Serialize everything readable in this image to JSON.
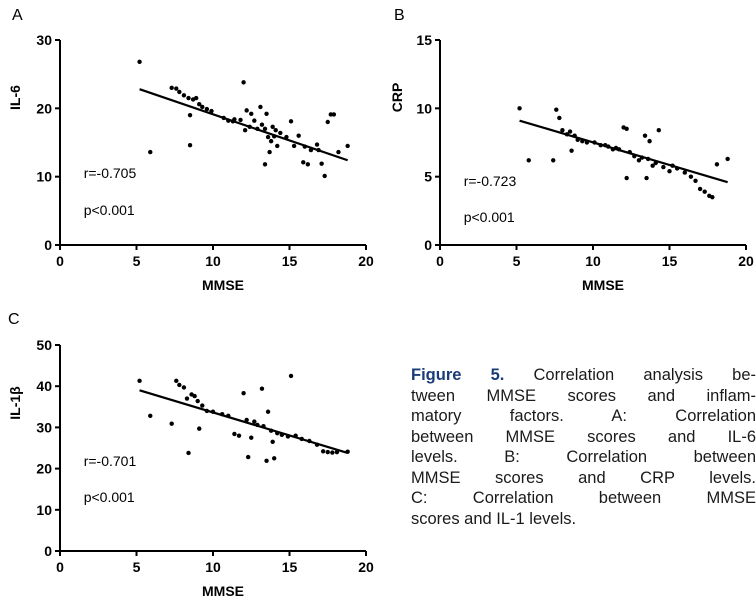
{
  "chart_data": [
    {
      "panel": "A",
      "type": "scatter",
      "xlabel": "MMSE",
      "ylabel": "IL-6",
      "xlim": [
        0,
        20
      ],
      "ylim": [
        0,
        30
      ],
      "xticks": [
        "0",
        "5",
        "10",
        "15",
        "20"
      ],
      "yticks": [
        "0",
        "10",
        "20",
        "30"
      ],
      "annotations": [
        "r=-0.705",
        "p<0.001"
      ],
      "fit_line": [
        [
          5.2,
          22.8
        ],
        [
          18.8,
          12.4
        ]
      ],
      "points": [
        [
          5.2,
          26.8
        ],
        [
          5.9,
          13.6
        ],
        [
          7.3,
          23.0
        ],
        [
          7.6,
          22.9
        ],
        [
          7.8,
          22.4
        ],
        [
          8.1,
          21.9
        ],
        [
          8.4,
          21.5
        ],
        [
          8.5,
          14.6
        ],
        [
          8.5,
          19.0
        ],
        [
          8.7,
          21.3
        ],
        [
          8.9,
          21.5
        ],
        [
          9.1,
          20.6
        ],
        [
          9.3,
          20.2
        ],
        [
          9.6,
          19.9
        ],
        [
          9.9,
          19.6
        ],
        [
          10.7,
          18.6
        ],
        [
          11.0,
          18.2
        ],
        [
          11.3,
          18.1
        ],
        [
          11.4,
          18.4
        ],
        [
          11.8,
          18.3
        ],
        [
          12.0,
          23.8
        ],
        [
          12.1,
          16.8
        ],
        [
          12.2,
          19.7
        ],
        [
          12.4,
          17.3
        ],
        [
          12.5,
          19.2
        ],
        [
          12.7,
          18.2
        ],
        [
          12.9,
          17.0
        ],
        [
          13.1,
          20.2
        ],
        [
          13.2,
          17.6
        ],
        [
          13.4,
          17.0
        ],
        [
          13.4,
          11.8
        ],
        [
          13.5,
          19.2
        ],
        [
          13.6,
          15.8
        ],
        [
          13.7,
          13.6
        ],
        [
          13.8,
          15.2
        ],
        [
          13.9,
          17.3
        ],
        [
          14.0,
          15.9
        ],
        [
          14.1,
          16.8
        ],
        [
          14.2,
          14.5
        ],
        [
          14.4,
          16.4
        ],
        [
          14.8,
          15.8
        ],
        [
          15.1,
          18.1
        ],
        [
          15.3,
          14.5
        ],
        [
          15.6,
          16.0
        ],
        [
          15.9,
          12.1
        ],
        [
          16.0,
          14.4
        ],
        [
          16.2,
          11.8
        ],
        [
          16.4,
          13.9
        ],
        [
          16.8,
          14.7
        ],
        [
          16.9,
          13.9
        ],
        [
          17.1,
          11.9
        ],
        [
          17.3,
          10.1
        ],
        [
          17.5,
          18.0
        ],
        [
          17.7,
          19.1
        ],
        [
          17.9,
          19.1
        ],
        [
          18.2,
          13.6
        ],
        [
          18.8,
          14.5
        ]
      ]
    },
    {
      "panel": "B",
      "type": "scatter",
      "xlabel": "MMSE",
      "ylabel": "CRP",
      "xlim": [
        0,
        20
      ],
      "ylim": [
        0,
        15
      ],
      "xticks": [
        "0",
        "5",
        "10",
        "15",
        "20"
      ],
      "yticks": [
        "0",
        "5",
        "10",
        "15"
      ],
      "annotations": [
        "r=-0.723",
        "p<0.001"
      ],
      "fit_line": [
        [
          5.2,
          9.1
        ],
        [
          18.8,
          4.6
        ]
      ],
      "points": [
        [
          5.2,
          10.0
        ],
        [
          5.8,
          6.2
        ],
        [
          7.4,
          6.2
        ],
        [
          7.6,
          9.9
        ],
        [
          7.8,
          9.3
        ],
        [
          8.0,
          8.4
        ],
        [
          8.3,
          8.1
        ],
        [
          8.5,
          8.3
        ],
        [
          8.6,
          6.9
        ],
        [
          8.8,
          8.0
        ],
        [
          9.0,
          7.7
        ],
        [
          9.3,
          7.6
        ],
        [
          9.6,
          7.5
        ],
        [
          10.1,
          7.5
        ],
        [
          10.5,
          7.3
        ],
        [
          10.8,
          7.3
        ],
        [
          11.0,
          7.2
        ],
        [
          11.3,
          7.0
        ],
        [
          11.5,
          7.1
        ],
        [
          11.7,
          7.0
        ],
        [
          12.0,
          8.6
        ],
        [
          12.2,
          8.5
        ],
        [
          12.2,
          4.9
        ],
        [
          12.4,
          6.8
        ],
        [
          12.7,
          6.5
        ],
        [
          13.0,
          6.2
        ],
        [
          13.2,
          6.4
        ],
        [
          13.4,
          8.0
        ],
        [
          13.5,
          4.9
        ],
        [
          13.6,
          6.3
        ],
        [
          13.7,
          7.6
        ],
        [
          13.9,
          5.8
        ],
        [
          14.1,
          6.0
        ],
        [
          14.3,
          8.4
        ],
        [
          14.6,
          5.7
        ],
        [
          15.0,
          5.4
        ],
        [
          15.2,
          5.8
        ],
        [
          15.5,
          5.6
        ],
        [
          16.0,
          5.3
        ],
        [
          16.4,
          5.0
        ],
        [
          16.7,
          4.7
        ],
        [
          17.0,
          4.1
        ],
        [
          17.3,
          3.9
        ],
        [
          17.6,
          3.6
        ],
        [
          17.8,
          3.5
        ],
        [
          18.1,
          5.9
        ],
        [
          18.8,
          6.3
        ]
      ]
    },
    {
      "panel": "C",
      "type": "scatter",
      "xlabel": "MMSE",
      "ylabel": "IL-1β",
      "xlim": [
        0,
        20
      ],
      "ylim": [
        0,
        50
      ],
      "xticks": [
        "0",
        "5",
        "10",
        "15",
        "20"
      ],
      "yticks": [
        "0",
        "10",
        "20",
        "30",
        "40",
        "50"
      ],
      "annotations": [
        "r=-0.701",
        "p<0.001"
      ],
      "fit_line": [
        [
          5.2,
          39.0
        ],
        [
          18.8,
          23.8
        ]
      ],
      "points": [
        [
          5.2,
          41.3
        ],
        [
          5.9,
          32.8
        ],
        [
          7.3,
          30.9
        ],
        [
          7.6,
          41.3
        ],
        [
          7.8,
          40.3
        ],
        [
          8.1,
          39.7
        ],
        [
          8.3,
          37.0
        ],
        [
          8.4,
          23.8
        ],
        [
          8.6,
          38.0
        ],
        [
          8.8,
          37.6
        ],
        [
          9.0,
          36.4
        ],
        [
          9.1,
          29.7
        ],
        [
          9.3,
          35.3
        ],
        [
          9.6,
          34.0
        ],
        [
          10.0,
          33.8
        ],
        [
          10.6,
          33.2
        ],
        [
          11.0,
          32.8
        ],
        [
          11.4,
          28.4
        ],
        [
          11.7,
          28.0
        ],
        [
          12.0,
          38.3
        ],
        [
          12.2,
          31.8
        ],
        [
          12.3,
          22.8
        ],
        [
          12.5,
          27.5
        ],
        [
          12.7,
          31.4
        ],
        [
          12.9,
          30.6
        ],
        [
          13.2,
          39.4
        ],
        [
          13.3,
          30.3
        ],
        [
          13.5,
          21.9
        ],
        [
          13.6,
          33.8
        ],
        [
          13.8,
          29.2
        ],
        [
          13.9,
          26.5
        ],
        [
          14.0,
          22.5
        ],
        [
          14.2,
          28.6
        ],
        [
          14.5,
          28.2
        ],
        [
          14.9,
          27.8
        ],
        [
          15.1,
          42.5
        ],
        [
          15.4,
          28.0
        ],
        [
          15.8,
          27.2
        ],
        [
          16.3,
          26.7
        ],
        [
          16.8,
          25.8
        ],
        [
          17.2,
          24.2
        ],
        [
          17.5,
          24.0
        ],
        [
          17.8,
          23.9
        ],
        [
          18.1,
          24.0
        ],
        [
          18.8,
          24.1
        ]
      ]
    }
  ],
  "caption": {
    "label": "Figure 5.",
    "lines": [
      " Correlation analysis be-",
      "tween MMSE scores and inflam-",
      "matory factors. A: Correlation",
      "between MMSE scores and IL-6",
      "levels. B: Correlation between",
      "MMSE scores and CRP levels.",
      "C: Correlation between MMSE",
      "scores and IL-1 levels."
    ]
  }
}
